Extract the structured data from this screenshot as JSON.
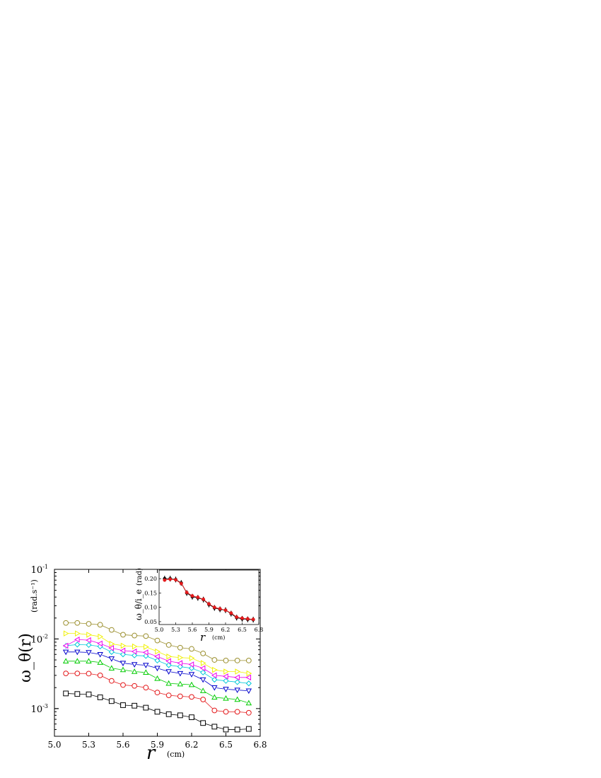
{
  "chart_data": [
    {
      "type": "line",
      "log_y": true,
      "xlabel": "r",
      "xunit": "(cm)",
      "ylabel": "ω_θ(r)",
      "yunit": "(rad.s⁻¹)",
      "xlim": [
        5.0,
        6.8
      ],
      "ylim": [
        0.0004,
        0.1
      ],
      "x_ticks": [
        "5.0",
        "5.3",
        "5.6",
        "5.9",
        "6.2",
        "6.5",
        "6.8"
      ],
      "y_ticks": [
        {
          "base": "10",
          "exp": "-1",
          "value": 0.1
        },
        {
          "base": "10",
          "exp": "-2",
          "value": 0.01
        },
        {
          "base": "10",
          "exp": "-3",
          "value": 0.001
        }
      ],
      "x": [
        5.1,
        5.2,
        5.3,
        5.4,
        5.5,
        5.6,
        5.7,
        5.8,
        5.9,
        6.0,
        6.1,
        6.2,
        6.3,
        6.4,
        6.5,
        6.6,
        6.7
      ],
      "series": [
        {
          "marker": "square",
          "color": "#000000",
          "values": [
            0.00165,
            0.00162,
            0.0016,
            0.00145,
            0.00128,
            0.00112,
            0.0011,
            0.00103,
            0.0009,
            0.00083,
            0.0008,
            0.00075,
            0.00062,
            0.00055,
            0.0005,
            0.0005,
            0.00051
          ]
        },
        {
          "marker": "circle",
          "color": "#e41a1c",
          "values": [
            0.0032,
            0.0032,
            0.00318,
            0.003,
            0.0025,
            0.00218,
            0.00212,
            0.002,
            0.0017,
            0.00155,
            0.0015,
            0.00147,
            0.00135,
            0.00094,
            0.0009,
            0.0009,
            0.00087
          ]
        },
        {
          "marker": "triangle-up",
          "color": "#00cc00",
          "values": [
            0.0048,
            0.0048,
            0.0048,
            0.0046,
            0.0038,
            0.0036,
            0.0034,
            0.0033,
            0.0027,
            0.0023,
            0.00225,
            0.0022,
            0.0018,
            0.00145,
            0.0014,
            0.00135,
            0.0012
          ]
        },
        {
          "marker": "triangle-down",
          "color": "#0000cc",
          "values": [
            0.0065,
            0.0065,
            0.0064,
            0.006,
            0.0052,
            0.0045,
            0.0043,
            0.0042,
            0.0038,
            0.0034,
            0.0032,
            0.0031,
            0.0026,
            0.002,
            0.0019,
            0.00185,
            0.0018
          ]
        },
        {
          "marker": "diamond",
          "color": "#00c8d8",
          "values": [
            0.008,
            0.0083,
            0.0082,
            0.0078,
            0.0065,
            0.006,
            0.0058,
            0.0057,
            0.0049,
            0.0042,
            0.004,
            0.0038,
            0.0033,
            0.0026,
            0.0025,
            0.0024,
            0.0023
          ]
        },
        {
          "marker": "triangle-left",
          "color": "#ee00ee",
          "values": [
            0.008,
            0.0098,
            0.0096,
            0.0086,
            0.0074,
            0.0068,
            0.0066,
            0.0064,
            0.0056,
            0.0048,
            0.0045,
            0.0043,
            0.0038,
            0.003,
            0.0029,
            0.0028,
            0.0028
          ]
        },
        {
          "marker": "triangle-right",
          "color": "#f0f000",
          "values": [
            0.012,
            0.012,
            0.0115,
            0.0108,
            0.0085,
            0.008,
            0.0078,
            0.0077,
            0.0066,
            0.0056,
            0.0054,
            0.0053,
            0.0045,
            0.0036,
            0.0034,
            0.0034,
            0.0032
          ]
        },
        {
          "marker": "circle",
          "color": "#9c9030",
          "values": [
            0.017,
            0.017,
            0.0165,
            0.016,
            0.0135,
            0.0115,
            0.0112,
            0.011,
            0.0095,
            0.0082,
            0.0075,
            0.0072,
            0.0062,
            0.005,
            0.0049,
            0.0049,
            0.0049
          ]
        }
      ]
    },
    {
      "type": "line",
      "role": "inset",
      "xlabel": "r",
      "xunit": "(cm)",
      "ylabel": "ω_θ/i_e",
      "yunit": "(rad)",
      "xlim": [
        5.0,
        6.8
      ],
      "ylim": [
        0.04,
        0.23
      ],
      "x_ticks": [
        "5.0",
        "5.3",
        "5.6",
        "5.9",
        "6.2",
        "6.5",
        "6.8"
      ],
      "y_ticks": [
        "0.05",
        "0.10",
        "0.15",
        "0.20"
      ],
      "x": [
        5.1,
        5.2,
        5.3,
        5.4,
        5.5,
        5.6,
        5.7,
        5.8,
        5.9,
        6.0,
        6.1,
        6.2,
        6.3,
        6.4,
        6.5,
        6.6,
        6.7
      ],
      "series": [
        {
          "name": "",
          "color": "#000000",
          "values": [
            0.2,
            0.2,
            0.197,
            0.185,
            0.15,
            0.137,
            0.133,
            0.127,
            0.11,
            0.098,
            0.093,
            0.09,
            0.078,
            0.064,
            0.06,
            0.058,
            0.057
          ]
        },
        {
          "name": "",
          "color": "#e41a1c",
          "values": [
            0.195,
            0.198,
            0.196,
            0.183,
            0.152,
            0.14,
            0.135,
            0.128,
            0.112,
            0.1,
            0.095,
            0.09,
            0.08,
            0.066,
            0.062,
            0.06,
            0.058
          ]
        }
      ]
    }
  ]
}
